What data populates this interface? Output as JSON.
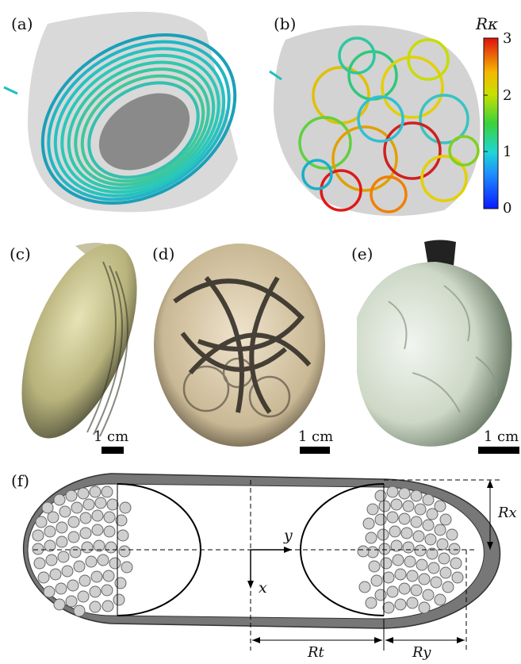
{
  "panels": {
    "a": "(a)",
    "b": "(b)",
    "c": "(c)",
    "d": "(d)",
    "e": "(e)",
    "f": "(f)"
  },
  "colorbar": {
    "title": "Rκ",
    "ticks": [
      "3",
      "2",
      "1",
      "0"
    ]
  },
  "scalebars": {
    "c": "1 cm",
    "d": "1 cm",
    "e": "1 cm"
  },
  "schematic": {
    "y_axis": "y",
    "x_axis": "x",
    "Rx": "Rx",
    "Rt": "Rt",
    "Ry": "Ry"
  }
}
